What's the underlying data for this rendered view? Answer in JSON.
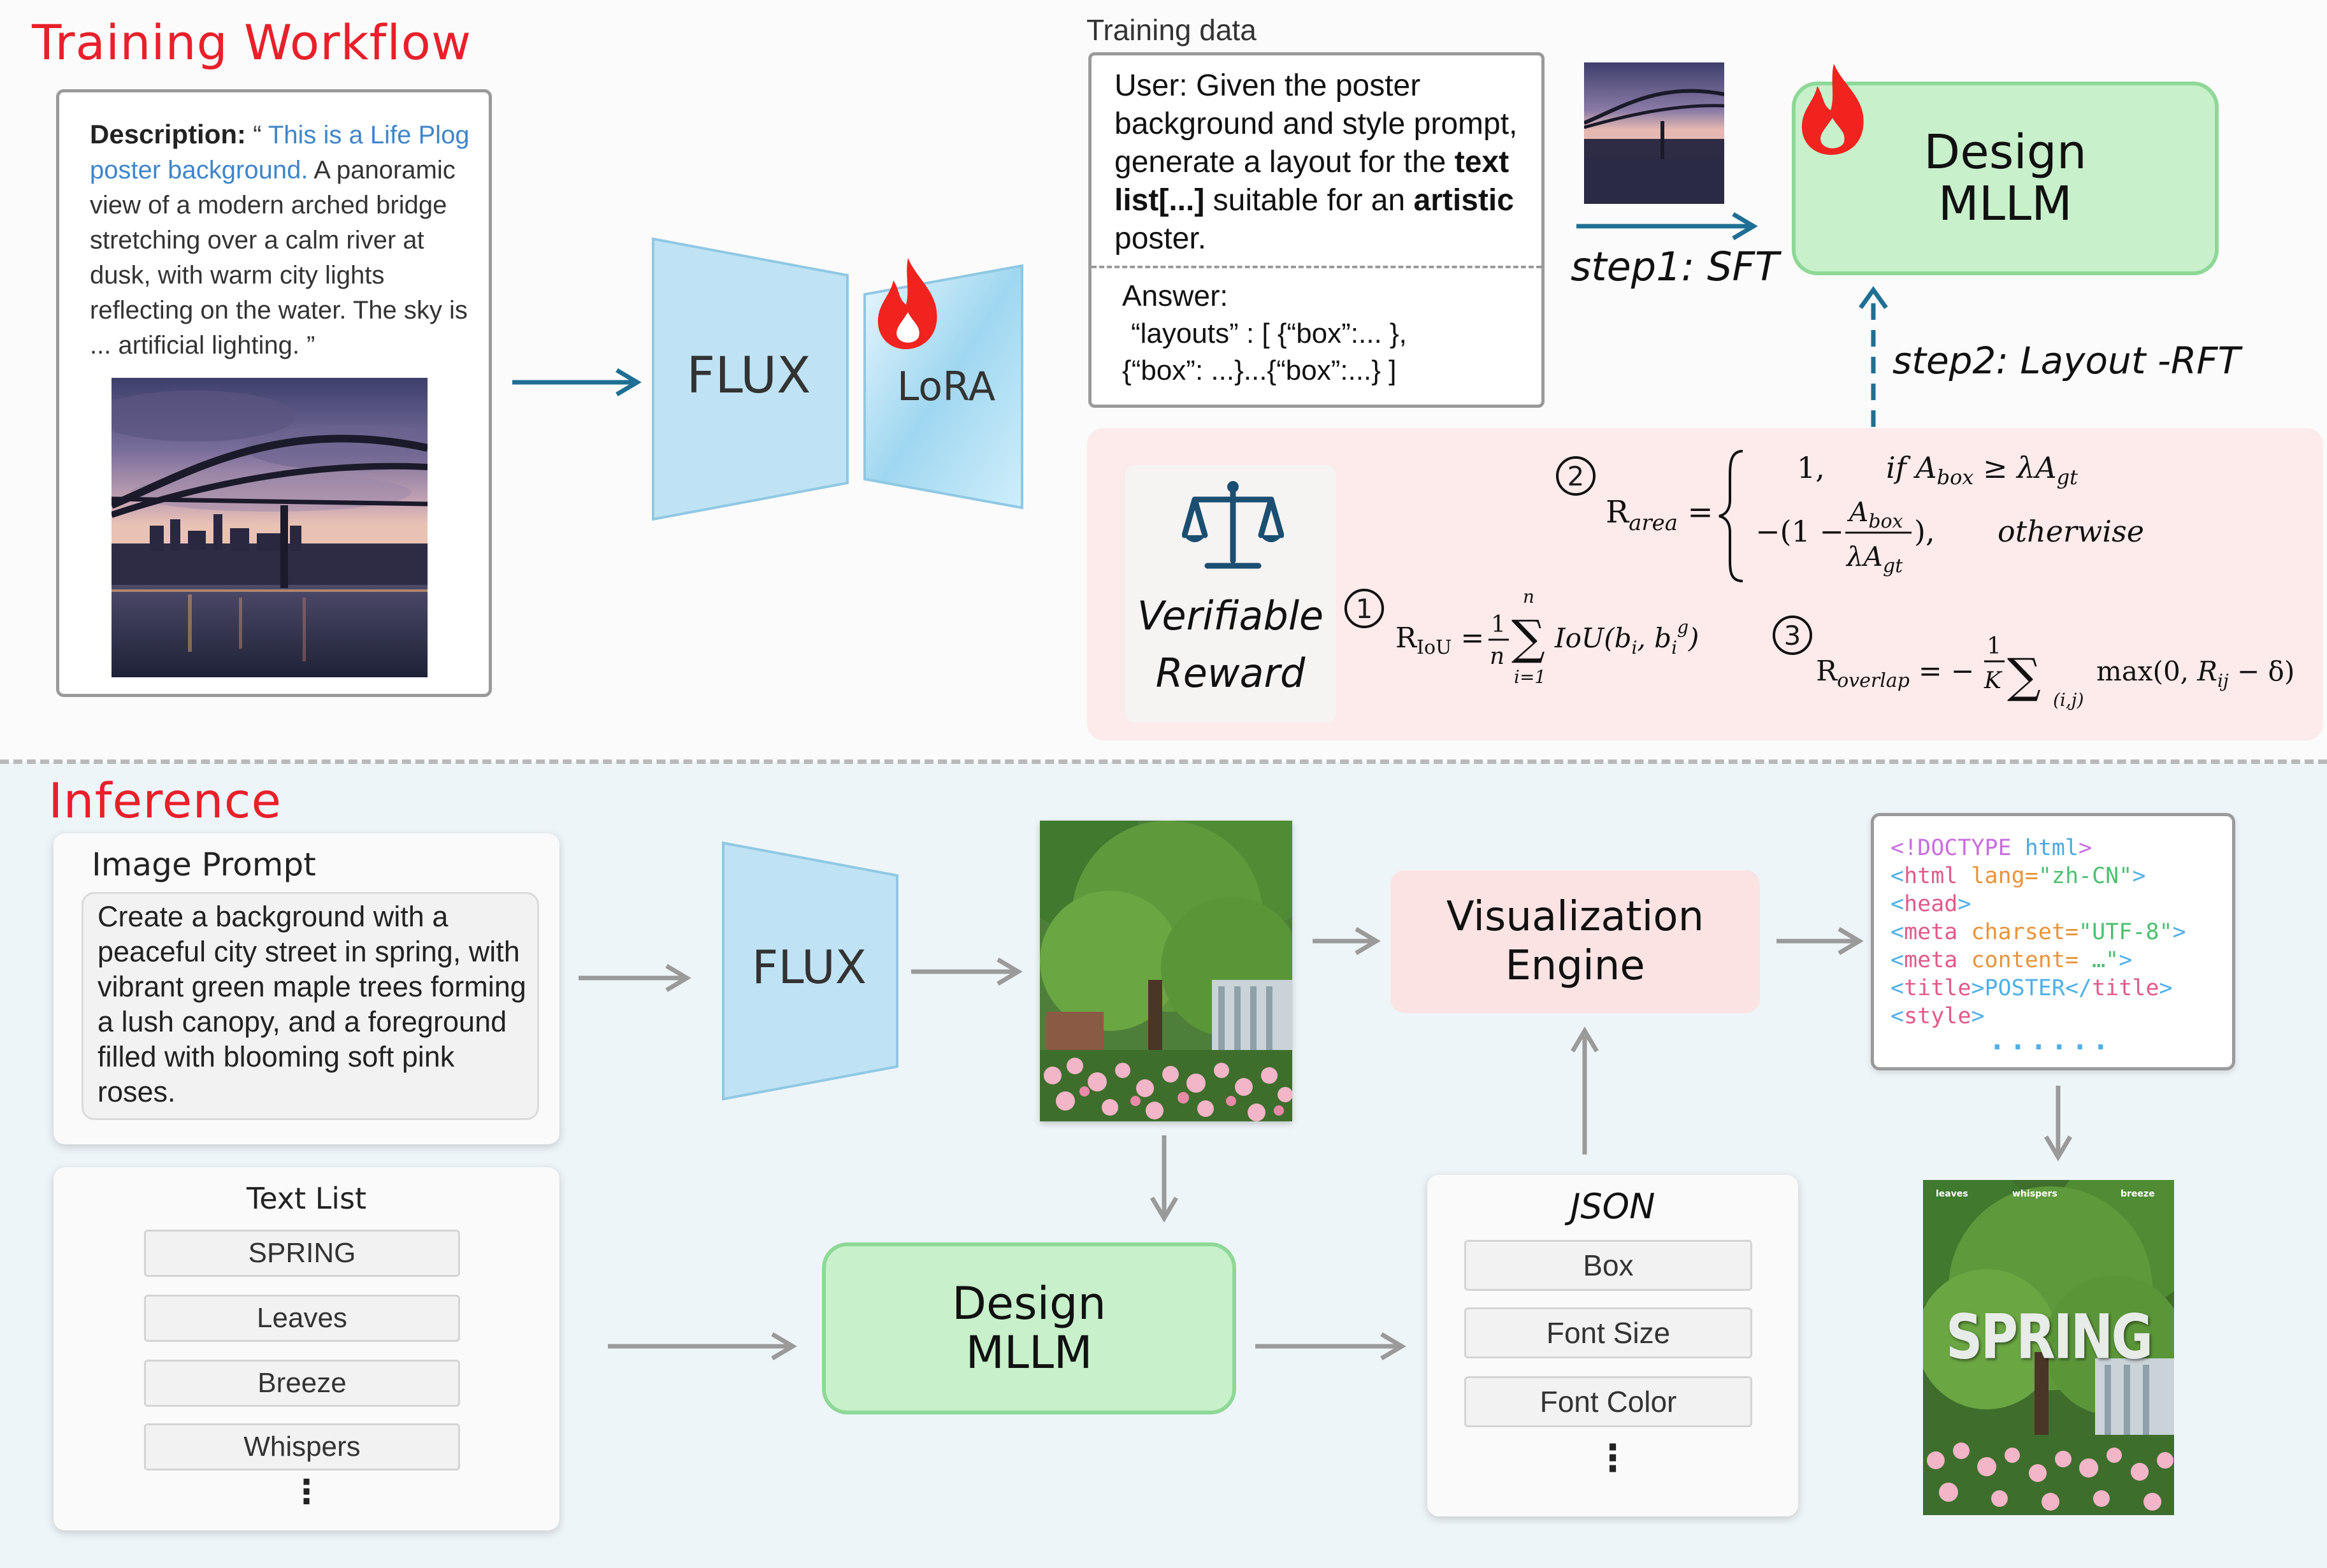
{
  "training": {
    "section_title": "Training Workflow",
    "description": {
      "label": "Description:",
      "quote_open": " “ ",
      "highlight": "This is a Life Plog poster background.",
      "body": " A panoramic view of a modern arched bridge stretching over a calm river at dusk, with warm city lights reflecting on the water. The sky is ... artificial lighting. ”"
    },
    "flux_label": "FLUX",
    "lora_label": "LoRA",
    "training_data": {
      "title": "Training data",
      "user_prefix": "User:",
      "user_text_1": " Given the poster background and style prompt, generate a layout for the ",
      "user_bold_1": "text list[...]",
      "user_text_2": " suitable for an ",
      "user_bold_2": "artistic",
      "user_text_3": " poster.",
      "answer_label": "Answer:",
      "answer_line1": "“layouts” : [ {“box”:... },",
      "answer_line2": "{“box”: ...}...{“box”:...} ]"
    },
    "step1_label": "step1: SFT",
    "step2_label": "step2: Layout -RFT",
    "design_mllm_line1": "Design",
    "design_mllm_line2": "MLLM",
    "reward": {
      "title_line1": "Verifiable",
      "title_line2": "Reward",
      "num1": "1",
      "num2": "2",
      "num3": "3"
    }
  },
  "inference": {
    "section_title": "Inference",
    "image_prompt_title": "Image Prompt",
    "image_prompt_text": "Create a background with a peaceful city street in spring, with vibrant green maple trees forming a lush canopy, and a foreground filled with blooming soft pink roses.",
    "flux_label": "FLUX",
    "text_list_title": "Text List",
    "text_list_items": [
      "SPRING",
      "Leaves",
      "Breeze",
      "Whispers"
    ],
    "more": "⋮",
    "design_mllm_line1": "Design",
    "design_mllm_line2": "MLLM",
    "visualization_line1": "Visualization",
    "visualization_line2": "Engine",
    "json_title": "JSON",
    "json_items": [
      "Box",
      "Font Size",
      "Font Color"
    ],
    "code_lines": [
      [
        "<!DOCTYPE ",
        "html",
        ">"
      ],
      [
        "<",
        "html",
        " lang=",
        "\"zh-CN\"",
        ">"
      ],
      [
        "<",
        "head",
        ">"
      ],
      [
        "<",
        "meta",
        " charset=",
        "\"UTF-8\"",
        ">"
      ],
      [
        "<",
        "meta",
        " content= ",
        "…\"",
        ">"
      ],
      [
        "<",
        "title",
        ">POSTER</",
        "title",
        ">"
      ],
      [
        "<",
        "style",
        ">"
      ]
    ],
    "code_more": "......",
    "poster_text": {
      "headline": "SPRING",
      "top_left": "leaves",
      "top_mid": "whispers",
      "top_right": "breeze"
    }
  },
  "colors": {
    "title_red": "#e8202a",
    "flux_blue": "#bfe3f4",
    "mllm_green": "#c7f0cb",
    "reward_pink": "#fdeaea",
    "arrow_blue": "#1f6f95",
    "arrow_gray": "#9a9a9a",
    "highlight_blue": "#3f86c9"
  }
}
